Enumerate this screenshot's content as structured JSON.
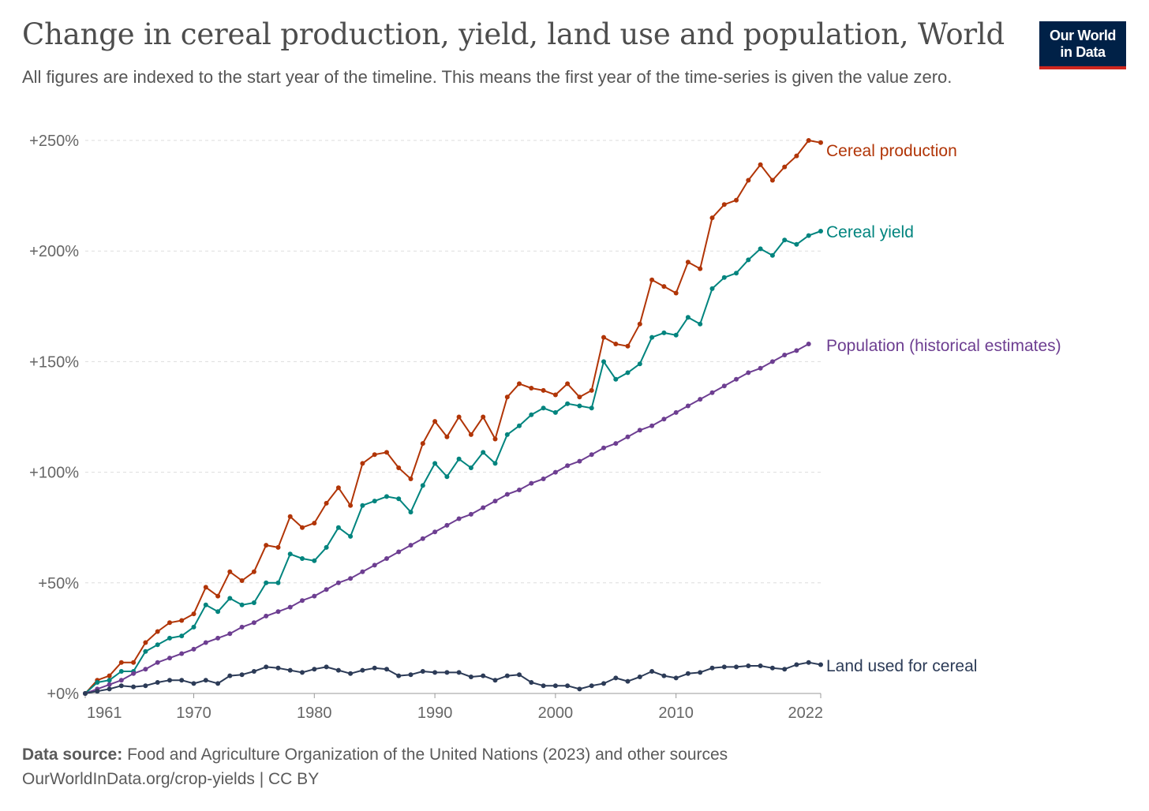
{
  "title": "Change in cereal production, yield, land use and population, World",
  "subtitle": "All figures are indexed to the start year of the timeline. This means the first year of the time-series is given the value zero.",
  "logo": {
    "text": "Our World in Data",
    "bg_color": "#002147",
    "accent_color": "#ce261e"
  },
  "footer": {
    "source_label": "Data source:",
    "source_text": "Food and Agriculture Organization of the United Nations (2023) and other sources",
    "url_license": "OurWorldInData.org/crop-yields | CC BY"
  },
  "chart_data": {
    "type": "line",
    "x_ticks": [
      1961,
      1970,
      1980,
      1990,
      2000,
      2010,
      2022
    ],
    "x_tick_labels": [
      "1961",
      "1970",
      "1980",
      "1990",
      "2000",
      "2010",
      "2022"
    ],
    "y_ticks": [
      0,
      50,
      100,
      150,
      200,
      250
    ],
    "y_tick_labels": [
      "+0%",
      "+50%",
      "+100%",
      "+150%",
      "+200%",
      "+250%"
    ],
    "xlim": [
      1961,
      2022
    ],
    "ylim": [
      0,
      250
    ],
    "grid": "horizontal dashed",
    "legend": "inline labels at line ends (right)",
    "series": [
      {
        "name": "Cereal production",
        "color": "#b13507",
        "x": [
          1961,
          1962,
          1963,
          1964,
          1965,
          1966,
          1967,
          1968,
          1969,
          1970,
          1971,
          1972,
          1973,
          1974,
          1975,
          1976,
          1977,
          1978,
          1979,
          1980,
          1981,
          1982,
          1983,
          1984,
          1985,
          1986,
          1987,
          1988,
          1989,
          1990,
          1991,
          1992,
          1993,
          1994,
          1995,
          1996,
          1997,
          1998,
          1999,
          2000,
          2001,
          2002,
          2003,
          2004,
          2005,
          2006,
          2007,
          2008,
          2009,
          2010,
          2011,
          2012,
          2013,
          2014,
          2015,
          2016,
          2017,
          2018,
          2019,
          2020,
          2021,
          2022
        ],
        "y": [
          0,
          6,
          8,
          14,
          14,
          23,
          28,
          32,
          33,
          36,
          48,
          44,
          55,
          51,
          55,
          67,
          66,
          80,
          75,
          77,
          86,
          93,
          85,
          104,
          108,
          109,
          102,
          97,
          113,
          123,
          116,
          125,
          117,
          125,
          115,
          134,
          140,
          138,
          137,
          135,
          140,
          134,
          137,
          161,
          158,
          157,
          167,
          187,
          184,
          181,
          195,
          192,
          215,
          221,
          223,
          232,
          239,
          232,
          238,
          243,
          250,
          249
        ]
      },
      {
        "name": "Cereal yield",
        "color": "#00847e",
        "x": [
          1961,
          1962,
          1963,
          1964,
          1965,
          1966,
          1967,
          1968,
          1969,
          1970,
          1971,
          1972,
          1973,
          1974,
          1975,
          1976,
          1977,
          1978,
          1979,
          1980,
          1981,
          1982,
          1983,
          1984,
          1985,
          1986,
          1987,
          1988,
          1989,
          1990,
          1991,
          1992,
          1993,
          1994,
          1995,
          1996,
          1997,
          1998,
          1999,
          2000,
          2001,
          2002,
          2003,
          2004,
          2005,
          2006,
          2007,
          2008,
          2009,
          2010,
          2011,
          2012,
          2013,
          2014,
          2015,
          2016,
          2017,
          2018,
          2019,
          2020,
          2021,
          2022
        ],
        "y": [
          0,
          5,
          6,
          10,
          10,
          19,
          22,
          25,
          26,
          30,
          40,
          37,
          43,
          40,
          41,
          50,
          50,
          63,
          61,
          60,
          66,
          75,
          71,
          85,
          87,
          89,
          88,
          82,
          94,
          104,
          98,
          106,
          102,
          109,
          104,
          117,
          121,
          126,
          129,
          127,
          131,
          130,
          129,
          150,
          142,
          145,
          149,
          161,
          163,
          162,
          170,
          167,
          183,
          188,
          190,
          196,
          201,
          198,
          205,
          203,
          207,
          209
        ]
      },
      {
        "name": "Population (historical estimates)",
        "color": "#6d3e91",
        "x": [
          1961,
          1962,
          1963,
          1964,
          1965,
          1966,
          1967,
          1968,
          1969,
          1970,
          1971,
          1972,
          1973,
          1974,
          1975,
          1976,
          1977,
          1978,
          1979,
          1980,
          1981,
          1982,
          1983,
          1984,
          1985,
          1986,
          1987,
          1988,
          1989,
          1990,
          1991,
          1992,
          1993,
          1994,
          1995,
          1996,
          1997,
          1998,
          1999,
          2000,
          2001,
          2002,
          2003,
          2004,
          2005,
          2006,
          2007,
          2008,
          2009,
          2010,
          2011,
          2012,
          2013,
          2014,
          2015,
          2016,
          2017,
          2018,
          2019,
          2020,
          2021
        ],
        "y": [
          0,
          2,
          4,
          6,
          9,
          11,
          14,
          16,
          18,
          20,
          23,
          25,
          27,
          30,
          32,
          35,
          37,
          39,
          42,
          44,
          47,
          50,
          52,
          55,
          58,
          61,
          64,
          67,
          70,
          73,
          76,
          79,
          81,
          84,
          87,
          90,
          92,
          95,
          97,
          100,
          103,
          105,
          108,
          111,
          113,
          116,
          119,
          121,
          124,
          127,
          130,
          133,
          136,
          139,
          142,
          145,
          147,
          150,
          153,
          155,
          158
        ]
      },
      {
        "name": "Land used for cereal",
        "color": "#2c3b57",
        "x": [
          1961,
          1962,
          1963,
          1964,
          1965,
          1966,
          1967,
          1968,
          1969,
          1970,
          1971,
          1972,
          1973,
          1974,
          1975,
          1976,
          1977,
          1978,
          1979,
          1980,
          1981,
          1982,
          1983,
          1984,
          1985,
          1986,
          1987,
          1988,
          1989,
          1990,
          1991,
          1992,
          1993,
          1994,
          1995,
          1996,
          1997,
          1998,
          1999,
          2000,
          2001,
          2002,
          2003,
          2004,
          2005,
          2006,
          2007,
          2008,
          2009,
          2010,
          2011,
          2012,
          2013,
          2014,
          2015,
          2016,
          2017,
          2018,
          2019,
          2020,
          2021,
          2022
        ],
        "y": [
          0,
          1,
          2,
          3.5,
          3,
          3.5,
          5,
          6,
          6,
          4.5,
          6,
          4.5,
          8,
          8.5,
          10,
          12,
          11.5,
          10.5,
          9.5,
          11,
          12,
          10.5,
          9,
          10.5,
          11.5,
          11,
          8,
          8.5,
          10,
          9.5,
          9.5,
          9.5,
          7.5,
          8,
          6,
          8,
          8.5,
          5,
          3.5,
          3.5,
          3.5,
          2,
          3.5,
          4.5,
          7,
          5.5,
          7.5,
          10,
          8,
          7,
          9,
          9.5,
          11.5,
          12,
          12,
          12.5,
          12.5,
          11.5,
          11,
          13,
          14,
          13
        ]
      }
    ]
  }
}
